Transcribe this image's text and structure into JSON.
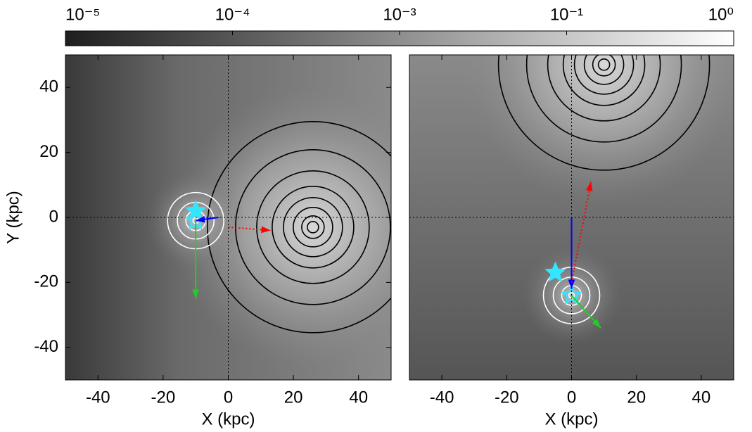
{
  "colorbar": {
    "labels": [
      "10⁻⁵",
      "10⁻⁴",
      "10⁻³",
      "10⁻¹",
      "10⁰"
    ]
  },
  "chart_data": [
    {
      "type": "map",
      "xlabel": "X (kpc)",
      "ylabel": "Y (kpc)",
      "xlim": [
        -50,
        50
      ],
      "ylim": [
        -50,
        50
      ],
      "xticks": [
        -40,
        -20,
        0,
        20,
        40
      ],
      "yticks": [
        -40,
        -20,
        0,
        20,
        40
      ],
      "host": {
        "x": 26,
        "y": -3
      },
      "satellite": {
        "x": -10,
        "y": -1
      },
      "star": {
        "x": -10,
        "y": 2
      },
      "arrows": [
        {
          "color": "#0000ff",
          "style": "solid",
          "x": [
            -3,
            -10
          ],
          "y": [
            0,
            -1
          ]
        },
        {
          "color": "#22cc22",
          "style": "solid",
          "x": [
            -10,
            -10
          ],
          "y": [
            -1,
            -25
          ]
        },
        {
          "color": "#ff0000",
          "style": "dotted",
          "x": [
            0,
            13
          ],
          "y": [
            -3,
            -4
          ]
        }
      ]
    },
    {
      "type": "map",
      "xlabel": "X (kpc)",
      "xlim": [
        -50,
        50
      ],
      "ylim": [
        -50,
        50
      ],
      "xticks": [
        -40,
        -20,
        0,
        20,
        40
      ],
      "host": {
        "x": 10,
        "y": 47
      },
      "satellite": {
        "x": 0,
        "y": -24
      },
      "star": {
        "x": -5,
        "y": -17
      },
      "arrows": [
        {
          "color": "#0000ff",
          "style": "solid",
          "x": [
            0,
            0
          ],
          "y": [
            0,
            -22
          ]
        },
        {
          "color": "#22cc22",
          "style": "solid",
          "x": [
            0,
            9
          ],
          "y": [
            -24,
            -34
          ]
        },
        {
          "color": "#ff0000",
          "style": "dotted",
          "x": [
            0,
            6
          ],
          "y": [
            -20,
            11
          ]
        }
      ]
    }
  ]
}
